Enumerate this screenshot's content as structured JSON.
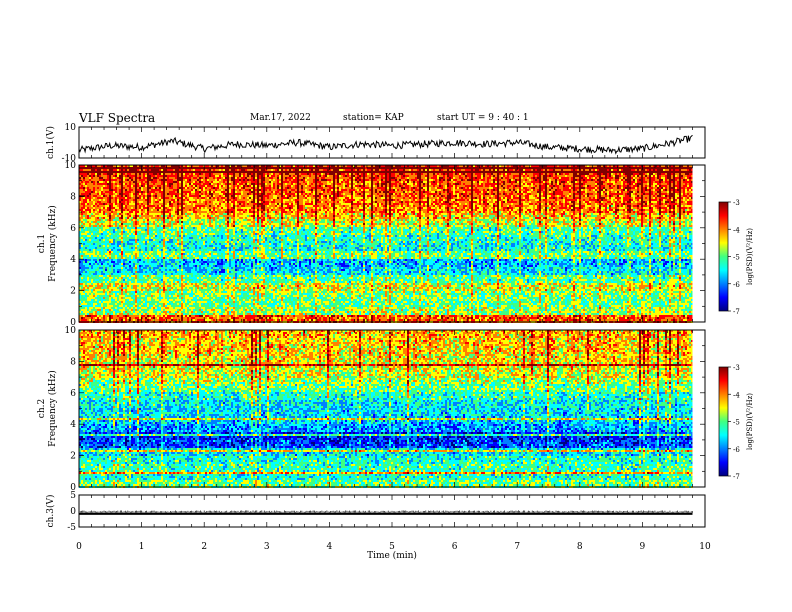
{
  "header": {
    "title": "VLF Spectra",
    "date": "Mar.17, 2022",
    "station": "station= KAP",
    "start_ut": "start  UT  =   9  : 40 : 1"
  },
  "chart_data": [
    {
      "type": "line",
      "panel": "ch1-waveform",
      "ylabel": "ch.1(V)",
      "ylim": [
        -10,
        10
      ],
      "ytick_labels": [
        "10",
        "-10"
      ],
      "xlim": [
        0,
        10
      ],
      "x_min": [
        0.0,
        0.5,
        1.0,
        1.5,
        2.0,
        2.5,
        3.0,
        3.5,
        4.0,
        4.5,
        5.0,
        5.5,
        6.0,
        6.5,
        7.0,
        7.5,
        8.0,
        8.5,
        9.0,
        9.5,
        9.8
      ],
      "values_v": [
        -5,
        -2,
        -3,
        1,
        -4,
        -1,
        -2,
        0,
        -3,
        -1,
        -2,
        -1,
        0,
        -1,
        0,
        -3,
        -4,
        -5,
        -4,
        0,
        3
      ]
    },
    {
      "type": "heatmap",
      "panel": "ch1-spectrogram",
      "ylabel": "ch.1\nFrequency (kHz)",
      "ylim": [
        0,
        10
      ],
      "ytick_labels": [
        "0",
        "2",
        "4",
        "6",
        "8",
        "10"
      ],
      "xlim": [
        0,
        9.8
      ],
      "colorbar_label": "log(PSD)(V²/Hz)",
      "colorbar_range": [
        -7,
        -3
      ],
      "colorbar_tick_labels": [
        "-3",
        "-4",
        "-5",
        "-6",
        "-7"
      ],
      "freq_bands_khz": [
        0,
        0.5,
        1,
        1.5,
        2,
        2.5,
        3,
        3.5,
        4,
        4.5,
        5,
        5.5,
        6,
        6.5,
        7,
        7.5,
        8,
        8.5,
        9,
        9.5,
        10
      ],
      "mean_log_psd": [
        -3.8,
        -4.8,
        -5.0,
        -4.9,
        -4.6,
        -5.1,
        -5.6,
        -5.8,
        -5.0,
        -5.4,
        -5.3,
        -5.1,
        -4.6,
        -4.3,
        -4.0,
        -3.9,
        -3.8,
        -3.8,
        -3.7,
        -3.6
      ]
    },
    {
      "type": "heatmap",
      "panel": "ch2-spectrogram",
      "ylabel": "ch.2\nFrequency (kHz)",
      "ylim": [
        0,
        10
      ],
      "ytick_labels": [
        "0",
        "2",
        "4",
        "6",
        "8",
        "10"
      ],
      "xlim": [
        0,
        9.8
      ],
      "colorbar_label": "log(PSD)(V²/Hz)",
      "colorbar_range": [
        -7,
        -3
      ],
      "colorbar_tick_labels": [
        "-3",
        "-4",
        "-5",
        "-6",
        "-7"
      ],
      "freq_bands_khz": [
        0,
        0.5,
        1,
        1.5,
        2,
        2.5,
        3,
        3.5,
        4,
        4.5,
        5,
        5.5,
        6,
        6.5,
        7,
        7.5,
        8,
        8.5,
        9,
        9.5,
        10
      ],
      "mean_log_psd": [
        -5.0,
        -5.3,
        -5.2,
        -5.3,
        -5.6,
        -6.3,
        -6.4,
        -5.9,
        -5.7,
        -5.6,
        -5.5,
        -5.3,
        -5.0,
        -4.8,
        -4.6,
        -4.5,
        -4.4,
        -4.3,
        -4.3,
        -4.2
      ]
    },
    {
      "type": "line",
      "panel": "ch3-waveform",
      "ylabel": "ch.3(V)",
      "ylim": [
        -5,
        5
      ],
      "ytick_labels": [
        "5",
        "0",
        "-5"
      ],
      "xlim": [
        0,
        10
      ],
      "signal_band_v": [
        -1.2,
        -0.6
      ],
      "xlabel": "Time  (min)",
      "xtick_labels": [
        "0",
        "1",
        "2",
        "3",
        "4",
        "5",
        "6",
        "7",
        "8",
        "9",
        "10"
      ]
    }
  ],
  "colors": {
    "colormap": [
      "#000080",
      "#0000ff",
      "#0080ff",
      "#00ffff",
      "#40ff80",
      "#ffff00",
      "#ff8000",
      "#ff0000",
      "#800000"
    ],
    "line": "#000000",
    "frame": "#000000"
  }
}
